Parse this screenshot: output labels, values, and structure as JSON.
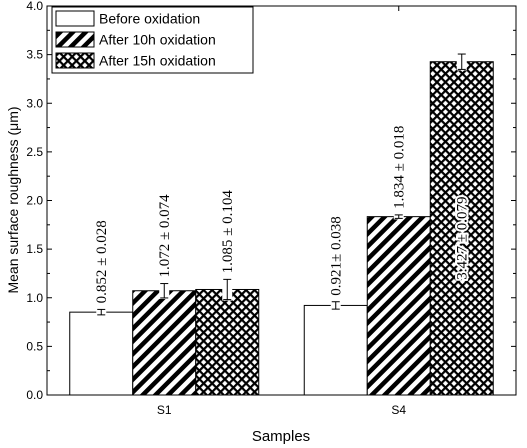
{
  "chart_data": {
    "type": "bar",
    "xlabel": "Samples",
    "ylabel": "Mean surface roughness (μm)",
    "ylim": [
      0.0,
      4.0
    ],
    "yticks": [
      "0.0",
      "0.5",
      "1.0",
      "1.5",
      "2.0",
      "2.5",
      "3.0",
      "3.5",
      "4.0"
    ],
    "categories": [
      "S1",
      "S4"
    ],
    "legend_position": "top-left",
    "series": [
      {
        "name": "Before oxidation",
        "pattern": "solid",
        "values": [
          0.852,
          0.921
        ],
        "errors": [
          0.028,
          0.038
        ],
        "labels": [
          "0.852 ± 0.028",
          "0.921± 0.038"
        ]
      },
      {
        "name": "After 10h oxidation",
        "pattern": "diagonal",
        "values": [
          1.072,
          1.834
        ],
        "errors": [
          0.074,
          0.018
        ],
        "labels": [
          "1.072 ± 0.074",
          "1.834 ± 0.018"
        ]
      },
      {
        "name": "After 15h oxidation",
        "pattern": "crosshatch",
        "values": [
          1.085,
          3.427
        ],
        "errors": [
          0.104,
          0.079
        ],
        "labels": [
          "1.085 ± 0.104",
          "3.427 ± 0.079"
        ]
      }
    ],
    "colors": {
      "bar_fill": "#ffffff",
      "stroke": "#000000",
      "hatch": "#000000"
    }
  }
}
